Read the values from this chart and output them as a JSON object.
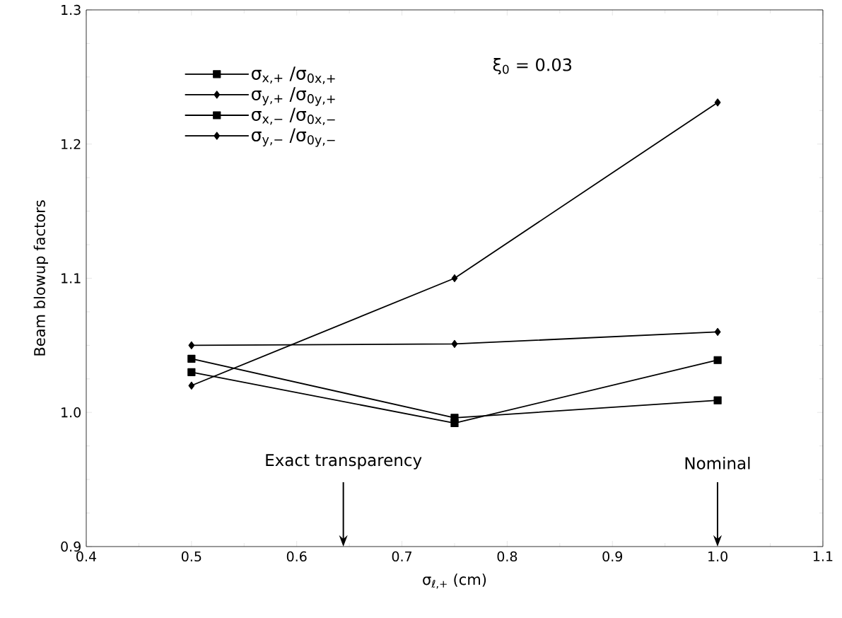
{
  "chart_data": {
    "type": "line",
    "xlabel": "σ$_{ℓ,+}$ (cm)",
    "ylabel": "Beam blowup factors",
    "x": [
      0.5,
      0.75,
      1.0
    ],
    "series": [
      {
        "name": "σ$_{x,+}$ /σ$_{0x,+}$",
        "color": "#000000",
        "marker": "square",
        "values": [
          1.03,
          0.992,
          1.039
        ]
      },
      {
        "name": "σ$_{y,+}$ /σ$_{0y,+}$",
        "color": "#000000",
        "marker": "diamond",
        "values": [
          1.02,
          1.1,
          1.231
        ]
      },
      {
        "name": "σ$_{x,−}$ /σ$_{0x,−}$",
        "color": "#000000",
        "marker": "square",
        "values": [
          1.04,
          0.996,
          1.009
        ]
      },
      {
        "name": "σ$_{y,−}$ /σ$_{0y,−}$",
        "color": "#000000",
        "marker": "diamond",
        "values": [
          1.05,
          1.051,
          1.06
        ]
      }
    ],
    "xlim": [
      0.4,
      1.1
    ],
    "xticks": [
      0.4,
      0.5,
      0.6,
      0.7,
      0.8,
      0.9,
      {
        "value": 1.0,
        "label": "1.0"
      },
      1.1
    ],
    "ylim": [
      0.9,
      1.3
    ],
    "yticks": [
      0.9,
      {
        "value": 1.0,
        "label": "1.0"
      },
      1.1,
      1.2,
      1.3
    ],
    "legend": "top left",
    "line_style": "solid",
    "annotations": [
      "ξ$_{0}$ = 0.03",
      "Exact transparency",
      "Nominal"
    ]
  }
}
